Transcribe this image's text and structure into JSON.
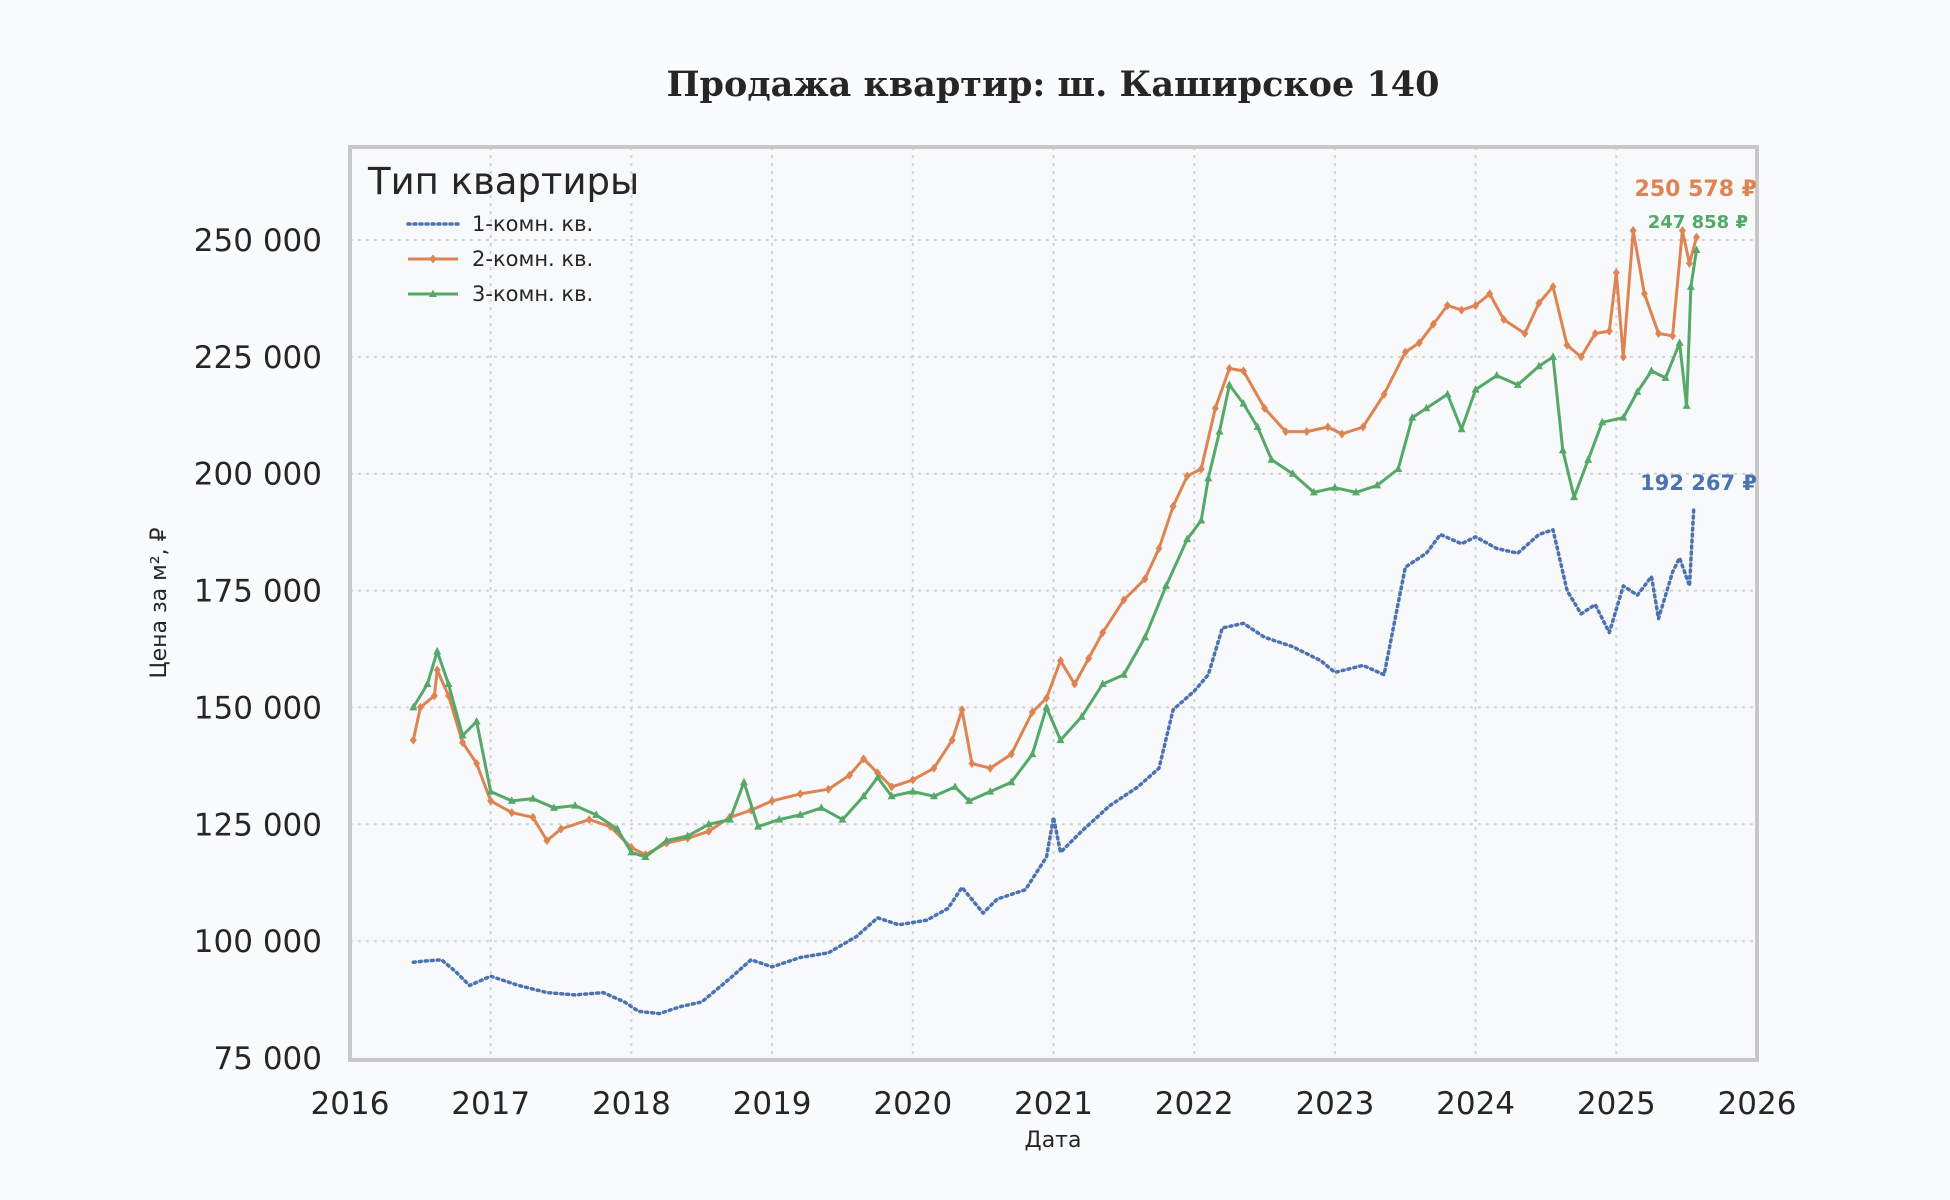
{
  "chart_data": {
    "type": "line",
    "title": "Продажа квартир: ш. Каширское 140",
    "xlabel": "Дата",
    "ylabel": "Цена за м², ₽",
    "xlim": [
      2016,
      2026
    ],
    "ylim": [
      75000,
      270000
    ],
    "x_ticks": [
      2016,
      2017,
      2018,
      2019,
      2020,
      2021,
      2022,
      2023,
      2024,
      2025,
      2026
    ],
    "x_tick_labels": [
      "2016",
      "2017",
      "2018",
      "2019",
      "2020",
      "2021",
      "2022",
      "2023",
      "2024",
      "2025",
      "2026"
    ],
    "y_ticks": [
      75000,
      100000,
      125000,
      150000,
      175000,
      200000,
      225000,
      250000
    ],
    "y_tick_labels": [
      "75 000",
      "100 000",
      "125 000",
      "150 000",
      "175 000",
      "200 000",
      "225 000",
      "250 000"
    ],
    "grid": true,
    "legend": {
      "title": "Тип квартиры",
      "placement": "top-left"
    },
    "series": [
      {
        "name": "1-комн. кв.",
        "color": "#4c72b0",
        "style": "dotted",
        "marker": "none",
        "end_label": "192 267 ₽",
        "points": [
          [
            2016.45,
            95500
          ],
          [
            2016.55,
            95800
          ],
          [
            2016.65,
            96000
          ],
          [
            2016.75,
            93500
          ],
          [
            2016.85,
            90500
          ],
          [
            2017.0,
            92500
          ],
          [
            2017.2,
            90500
          ],
          [
            2017.4,
            89000
          ],
          [
            2017.6,
            88500
          ],
          [
            2017.8,
            89000
          ],
          [
            2017.95,
            87000
          ],
          [
            2018.05,
            85000
          ],
          [
            2018.2,
            84500
          ],
          [
            2018.35,
            86000
          ],
          [
            2018.5,
            87000
          ],
          [
            2018.7,
            92000
          ],
          [
            2018.85,
            96000
          ],
          [
            2019.0,
            94500
          ],
          [
            2019.2,
            96500
          ],
          [
            2019.4,
            97500
          ],
          [
            2019.6,
            101000
          ],
          [
            2019.75,
            105000
          ],
          [
            2019.9,
            103500
          ],
          [
            2020.1,
            104500
          ],
          [
            2020.25,
            107000
          ],
          [
            2020.35,
            111500
          ],
          [
            2020.5,
            106000
          ],
          [
            2020.6,
            109000
          ],
          [
            2020.8,
            111000
          ],
          [
            2020.95,
            118000
          ],
          [
            2021.0,
            126500
          ],
          [
            2021.05,
            119000
          ],
          [
            2021.2,
            123500
          ],
          [
            2021.4,
            129000
          ],
          [
            2021.6,
            133000
          ],
          [
            2021.75,
            137000
          ],
          [
            2021.85,
            149500
          ],
          [
            2022.0,
            153500
          ],
          [
            2022.1,
            157000
          ],
          [
            2022.2,
            167000
          ],
          [
            2022.35,
            168000
          ],
          [
            2022.5,
            165000
          ],
          [
            2022.7,
            163000
          ],
          [
            2022.9,
            160000
          ],
          [
            2023.0,
            157500
          ],
          [
            2023.2,
            159000
          ],
          [
            2023.35,
            157000
          ],
          [
            2023.5,
            180000
          ],
          [
            2023.65,
            183000
          ],
          [
            2023.75,
            187000
          ],
          [
            2023.9,
            185000
          ],
          [
            2024.0,
            186500
          ],
          [
            2024.15,
            184000
          ],
          [
            2024.3,
            183000
          ],
          [
            2024.45,
            187000
          ],
          [
            2024.55,
            188000
          ],
          [
            2024.65,
            175000
          ],
          [
            2024.75,
            170000
          ],
          [
            2024.85,
            172000
          ],
          [
            2024.95,
            166000
          ],
          [
            2025.05,
            176000
          ],
          [
            2025.15,
            174000
          ],
          [
            2025.25,
            178000
          ],
          [
            2025.3,
            169000
          ],
          [
            2025.4,
            179000
          ],
          [
            2025.45,
            182000
          ],
          [
            2025.52,
            176000
          ],
          [
            2025.55,
            192267
          ]
        ]
      },
      {
        "name": "2-комн. кв.",
        "color": "#dd8452",
        "style": "solid",
        "marker": "diamond",
        "end_label": "250 578 ₽",
        "points": [
          [
            2016.45,
            143000
          ],
          [
            2016.5,
            150000
          ],
          [
            2016.6,
            152500
          ],
          [
            2016.62,
            158000
          ],
          [
            2016.7,
            152500
          ],
          [
            2016.8,
            142500
          ],
          [
            2016.9,
            138000
          ],
          [
            2017.0,
            130000
          ],
          [
            2017.15,
            127500
          ],
          [
            2017.3,
            126500
          ],
          [
            2017.4,
            121500
          ],
          [
            2017.5,
            124000
          ],
          [
            2017.7,
            126000
          ],
          [
            2017.85,
            124500
          ],
          [
            2018.0,
            120000
          ],
          [
            2018.1,
            118500
          ],
          [
            2018.25,
            121000
          ],
          [
            2018.4,
            122000
          ],
          [
            2018.55,
            123500
          ],
          [
            2018.7,
            126500
          ],
          [
            2018.85,
            128000
          ],
          [
            2019.0,
            130000
          ],
          [
            2019.2,
            131500
          ],
          [
            2019.4,
            132500
          ],
          [
            2019.55,
            135500
          ],
          [
            2019.65,
            139000
          ],
          [
            2019.75,
            136000
          ],
          [
            2019.85,
            133000
          ],
          [
            2020.0,
            134500
          ],
          [
            2020.15,
            137000
          ],
          [
            2020.28,
            143000
          ],
          [
            2020.35,
            149500
          ],
          [
            2020.42,
            138000
          ],
          [
            2020.55,
            137000
          ],
          [
            2020.7,
            140000
          ],
          [
            2020.85,
            149000
          ],
          [
            2020.95,
            152000
          ],
          [
            2021.05,
            160000
          ],
          [
            2021.15,
            155000
          ],
          [
            2021.25,
            160500
          ],
          [
            2021.35,
            166000
          ],
          [
            2021.5,
            173000
          ],
          [
            2021.65,
            177500
          ],
          [
            2021.75,
            184000
          ],
          [
            2021.85,
            193000
          ],
          [
            2021.95,
            199500
          ],
          [
            2022.05,
            201000
          ],
          [
            2022.15,
            214000
          ],
          [
            2022.25,
            222500
          ],
          [
            2022.35,
            222000
          ],
          [
            2022.5,
            214000
          ],
          [
            2022.65,
            209000
          ],
          [
            2022.8,
            209000
          ],
          [
            2022.95,
            210000
          ],
          [
            2023.05,
            208500
          ],
          [
            2023.2,
            210000
          ],
          [
            2023.35,
            217000
          ],
          [
            2023.5,
            226000
          ],
          [
            2023.6,
            228000
          ],
          [
            2023.7,
            232000
          ],
          [
            2023.8,
            236000
          ],
          [
            2023.9,
            235000
          ],
          [
            2024.0,
            236000
          ],
          [
            2024.1,
            238500
          ],
          [
            2024.2,
            233000
          ],
          [
            2024.35,
            230000
          ],
          [
            2024.45,
            236500
          ],
          [
            2024.55,
            240000
          ],
          [
            2024.65,
            227500
          ],
          [
            2024.75,
            225000
          ],
          [
            2024.85,
            230000
          ],
          [
            2024.95,
            230500
          ],
          [
            2025.0,
            243000
          ],
          [
            2025.05,
            225000
          ],
          [
            2025.12,
            252000
          ],
          [
            2025.2,
            238500
          ],
          [
            2025.3,
            230000
          ],
          [
            2025.4,
            229500
          ],
          [
            2025.47,
            252000
          ],
          [
            2025.52,
            245000
          ],
          [
            2025.57,
            250578
          ]
        ]
      },
      {
        "name": "3-комн. кв.",
        "color": "#55a868",
        "style": "solid",
        "marker": "triangle",
        "end_label": "247 858 ₽",
        "points": [
          [
            2016.45,
            150000
          ],
          [
            2016.55,
            155000
          ],
          [
            2016.62,
            162000
          ],
          [
            2016.7,
            155000
          ],
          [
            2016.8,
            144000
          ],
          [
            2016.9,
            147000
          ],
          [
            2017.0,
            132000
          ],
          [
            2017.15,
            130000
          ],
          [
            2017.3,
            130500
          ],
          [
            2017.45,
            128500
          ],
          [
            2017.6,
            129000
          ],
          [
            2017.75,
            127000
          ],
          [
            2017.9,
            124000
          ],
          [
            2018.0,
            119000
          ],
          [
            2018.1,
            118000
          ],
          [
            2018.25,
            121500
          ],
          [
            2018.4,
            122500
          ],
          [
            2018.55,
            125000
          ],
          [
            2018.7,
            126000
          ],
          [
            2018.8,
            134000
          ],
          [
            2018.9,
            124500
          ],
          [
            2019.05,
            126000
          ],
          [
            2019.2,
            127000
          ],
          [
            2019.35,
            128500
          ],
          [
            2019.5,
            126000
          ],
          [
            2019.65,
            131000
          ],
          [
            2019.75,
            135000
          ],
          [
            2019.85,
            131000
          ],
          [
            2020.0,
            132000
          ],
          [
            2020.15,
            131000
          ],
          [
            2020.3,
            133000
          ],
          [
            2020.4,
            130000
          ],
          [
            2020.55,
            132000
          ],
          [
            2020.7,
            134000
          ],
          [
            2020.85,
            140000
          ],
          [
            2020.95,
            150000
          ],
          [
            2021.05,
            143000
          ],
          [
            2021.2,
            148000
          ],
          [
            2021.35,
            155000
          ],
          [
            2021.5,
            157000
          ],
          [
            2021.65,
            165000
          ],
          [
            2021.8,
            176000
          ],
          [
            2021.95,
            186000
          ],
          [
            2022.05,
            190000
          ],
          [
            2022.1,
            199000
          ],
          [
            2022.18,
            209000
          ],
          [
            2022.25,
            219000
          ],
          [
            2022.35,
            215000
          ],
          [
            2022.45,
            210000
          ],
          [
            2022.55,
            203000
          ],
          [
            2022.7,
            200000
          ],
          [
            2022.85,
            196000
          ],
          [
            2023.0,
            197000
          ],
          [
            2023.15,
            196000
          ],
          [
            2023.3,
            197500
          ],
          [
            2023.45,
            201000
          ],
          [
            2023.55,
            212000
          ],
          [
            2023.65,
            214000
          ],
          [
            2023.8,
            217000
          ],
          [
            2023.9,
            209500
          ],
          [
            2024.0,
            218000
          ],
          [
            2024.15,
            221000
          ],
          [
            2024.3,
            219000
          ],
          [
            2024.45,
            223000
          ],
          [
            2024.55,
            225000
          ],
          [
            2024.62,
            205000
          ],
          [
            2024.7,
            195000
          ],
          [
            2024.8,
            203000
          ],
          [
            2024.9,
            211000
          ],
          [
            2025.05,
            212000
          ],
          [
            2025.15,
            217500
          ],
          [
            2025.25,
            222000
          ],
          [
            2025.35,
            220500
          ],
          [
            2025.45,
            228000
          ],
          [
            2025.5,
            214500
          ],
          [
            2025.53,
            240000
          ],
          [
            2025.57,
            247858
          ]
        ]
      }
    ]
  }
}
